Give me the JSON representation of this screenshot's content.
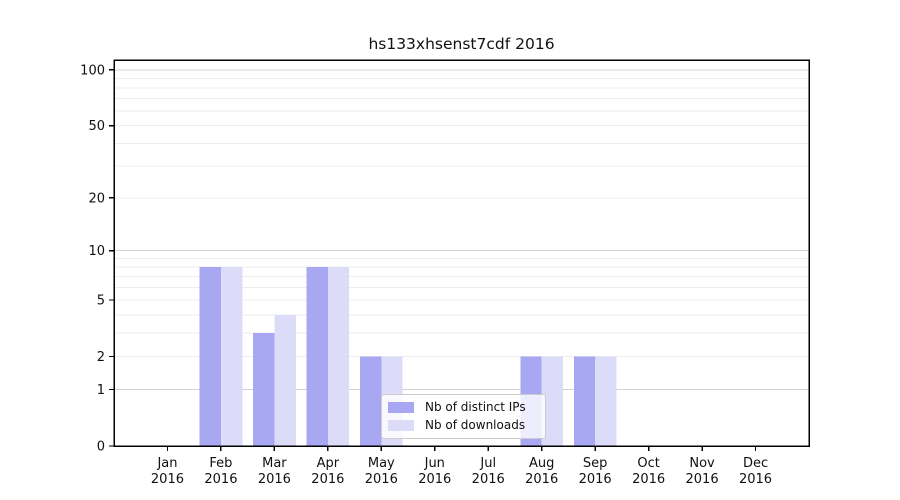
{
  "title": "hs133xhsenst7cdf 2016",
  "chart_data": {
    "type": "bar",
    "title": "hs133xhsenst7cdf 2016",
    "categories": [
      "Jan",
      "Feb",
      "Mar",
      "Apr",
      "May",
      "Jun",
      "Jul",
      "Aug",
      "Sep",
      "Oct",
      "Nov",
      "Dec"
    ],
    "x_tick_second_line": "2016",
    "series": [
      {
        "name": "Nb of distinct IPs",
        "color": "#a7a7f2",
        "values": [
          0,
          8,
          3,
          8,
          2,
          0,
          0,
          2,
          2,
          0,
          0,
          0
        ]
      },
      {
        "name": "Nb of downloads",
        "color": "#dcdcf8",
        "values": [
          0,
          8,
          4,
          8,
          2,
          0,
          0,
          2,
          2,
          0,
          0,
          0
        ]
      }
    ],
    "y_axis": {
      "scale": "log1p",
      "tick_values": [
        0,
        1,
        2,
        5,
        10,
        20,
        50,
        100
      ],
      "tick_labels": [
        "0",
        "1",
        "2",
        "5",
        "10",
        "20",
        "50",
        "100"
      ],
      "top_value": 113,
      "minor_gridlines": [
        2,
        3,
        4,
        5,
        6,
        7,
        8,
        9,
        20,
        30,
        40,
        50,
        60,
        70,
        80,
        90
      ],
      "major_gridlines": [
        1,
        10,
        100
      ]
    },
    "legend": {
      "entries": [
        "Nb of distinct IPs",
        "Nb of downloads"
      ],
      "position": "lower center"
    },
    "colors": {
      "grid_minor": "#ececec",
      "grid_major": "#d2d2d2",
      "axis": "#000000",
      "text": "#111111",
      "legend_border": "#cccccc",
      "legend_background": "rgba(255,255,255,0.8)"
    },
    "grid": true,
    "bar_group_width_fraction": 0.8
  }
}
